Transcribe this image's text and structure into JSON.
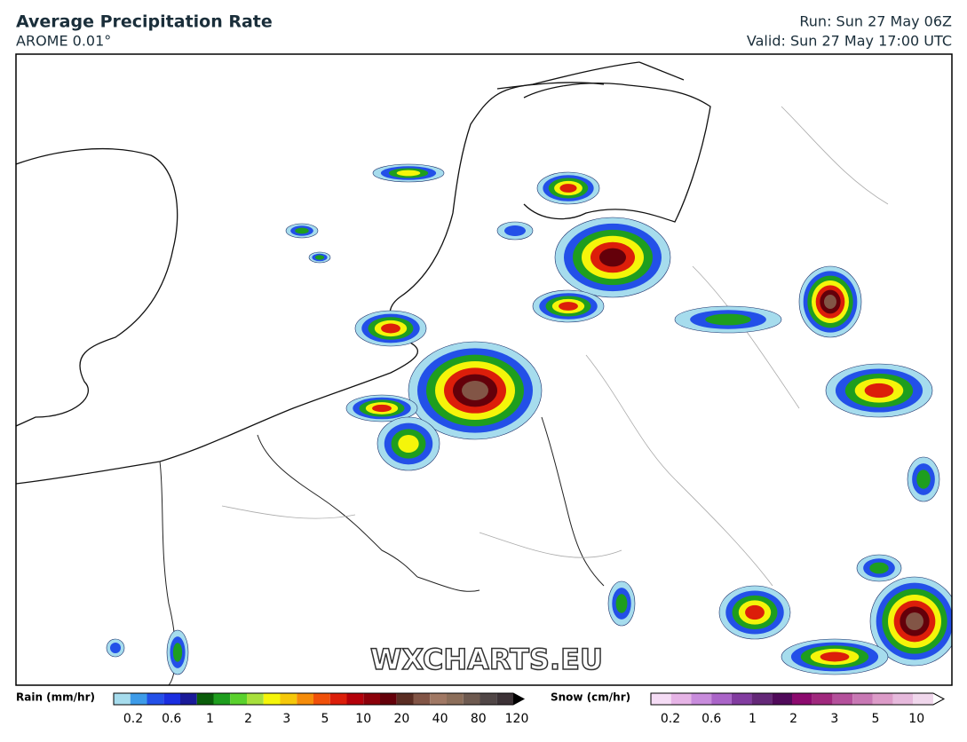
{
  "header": {
    "title": "Average Precipitation Rate",
    "subtitle": "AROME 0.01°",
    "run": "Run: Sun 27 May 06Z",
    "valid": "Valid: Sun 27 May 17:00 UTC"
  },
  "map": {
    "watermark": "WXCHARTS.EU"
  },
  "legend": {
    "rain": {
      "label": "Rain (mm/hr)",
      "ticks": [
        "0.2",
        "0.6",
        "1",
        "2",
        "3",
        "5",
        "10",
        "20",
        "40",
        "80",
        "120"
      ]
    },
    "snow": {
      "label": "Snow (cm/hr)",
      "ticks": [
        "0.2",
        "0.6",
        "1",
        "2",
        "3",
        "5",
        "10"
      ]
    }
  }
}
